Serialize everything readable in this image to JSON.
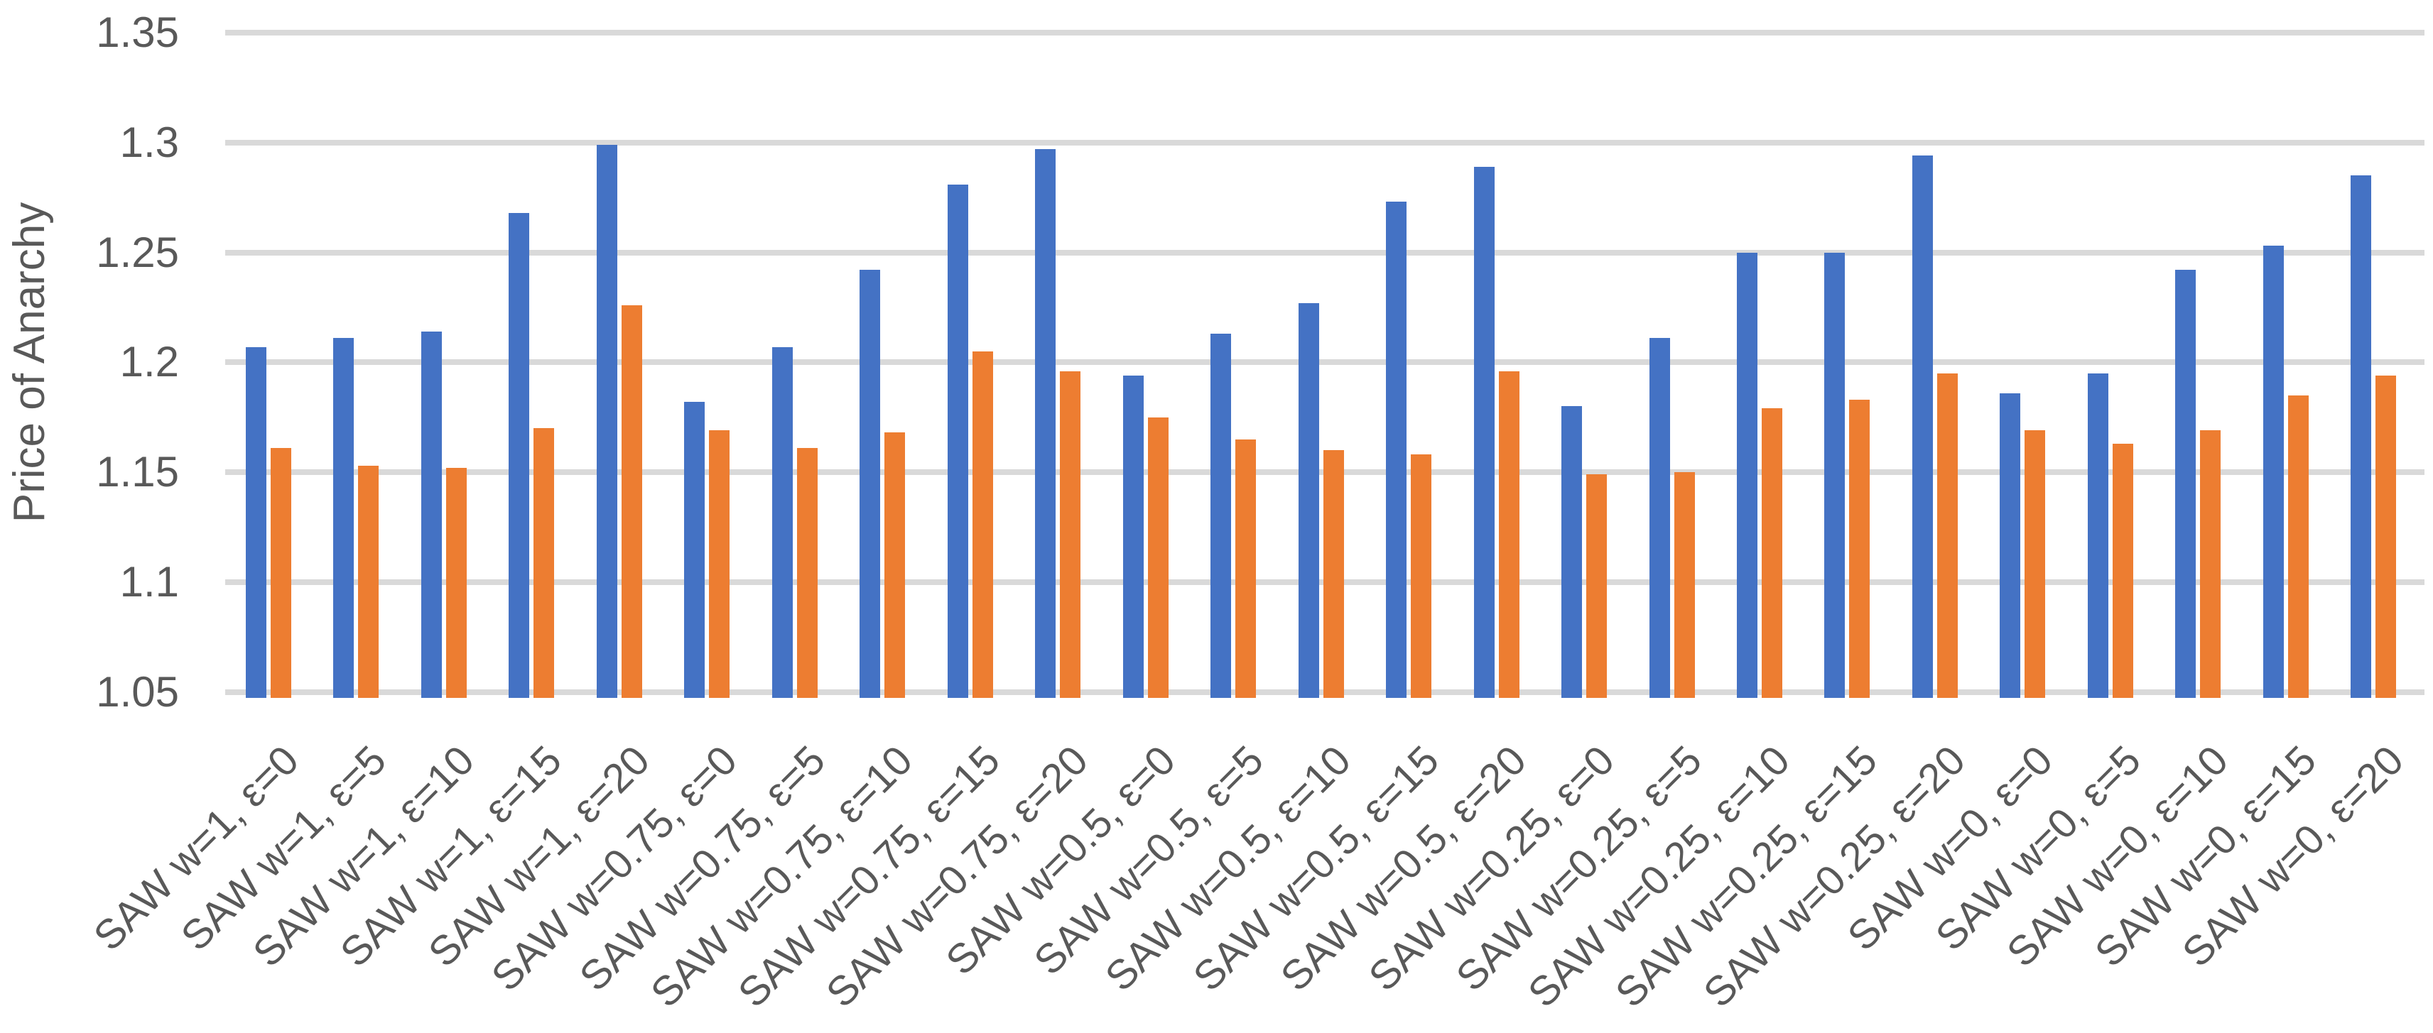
{
  "colors": {
    "series_blue": "#4472C4",
    "series_orange": "#ED7D31",
    "gridline": "#D9D9D9",
    "axis_text": "#595959",
    "background": "#FFFFFF"
  },
  "chart_data": {
    "type": "bar",
    "title": "",
    "xlabel": "",
    "ylabel": "Price of Anarchy",
    "ylim": [
      1.05,
      1.35
    ],
    "ytick_step": 0.05,
    "yticks": [
      1.35,
      1.3,
      1.25,
      1.2,
      1.15,
      1.1,
      1.05
    ],
    "ytick_labels": [
      "1.35",
      "1.3",
      "1.25",
      "1.2",
      "1.15",
      "1.1",
      "1.05"
    ],
    "grid": true,
    "legend_position": "none",
    "categories": [
      "SAW w=1, ε=0",
      "SAW w=1, ε=5",
      "SAW w=1, ε=10",
      "SAW w=1, ε=15",
      "SAW w=1, ε=20",
      "SAW w=0.75, ε=0",
      "SAW w=0.75, ε=5",
      "SAW w=0.75, ε=10",
      "SAW w=0.75, ε=15",
      "SAW w=0.75, ε=20",
      "SAW w=0.5, ε=0",
      "SAW w=0.5, ε=5",
      "SAW w=0.5, ε=10",
      "SAW w=0.5, ε=15",
      "SAW w=0.5, ε=20",
      "SAW w=0.25, ε=0",
      "SAW w=0.25, ε=5",
      "SAW w=0.25, ε=10",
      "SAW w=0.25, ε=15",
      "SAW w=0.25, ε=20",
      "SAW w=0, ε=0",
      "SAW w=0, ε=5",
      "SAW w=0, ε=10",
      "SAW w=0, ε=15",
      "SAW w=0, ε=20"
    ],
    "series": [
      {
        "name": "blue",
        "color": "#4472C4",
        "values": [
          1.207,
          1.211,
          1.214,
          1.268,
          1.299,
          1.182,
          1.207,
          1.242,
          1.281,
          1.297,
          1.194,
          1.213,
          1.227,
          1.273,
          1.289,
          1.18,
          1.211,
          1.25,
          1.25,
          1.294,
          1.186,
          1.195,
          1.242,
          1.253,
          1.285
        ]
      },
      {
        "name": "orange",
        "color": "#ED7D31",
        "values": [
          1.161,
          1.153,
          1.152,
          1.17,
          1.226,
          1.169,
          1.161,
          1.168,
          1.205,
          1.196,
          1.175,
          1.165,
          1.16,
          1.158,
          1.196,
          1.149,
          1.15,
          1.179,
          1.183,
          1.195,
          1.169,
          1.163,
          1.169,
          1.185,
          1.194
        ]
      }
    ]
  }
}
